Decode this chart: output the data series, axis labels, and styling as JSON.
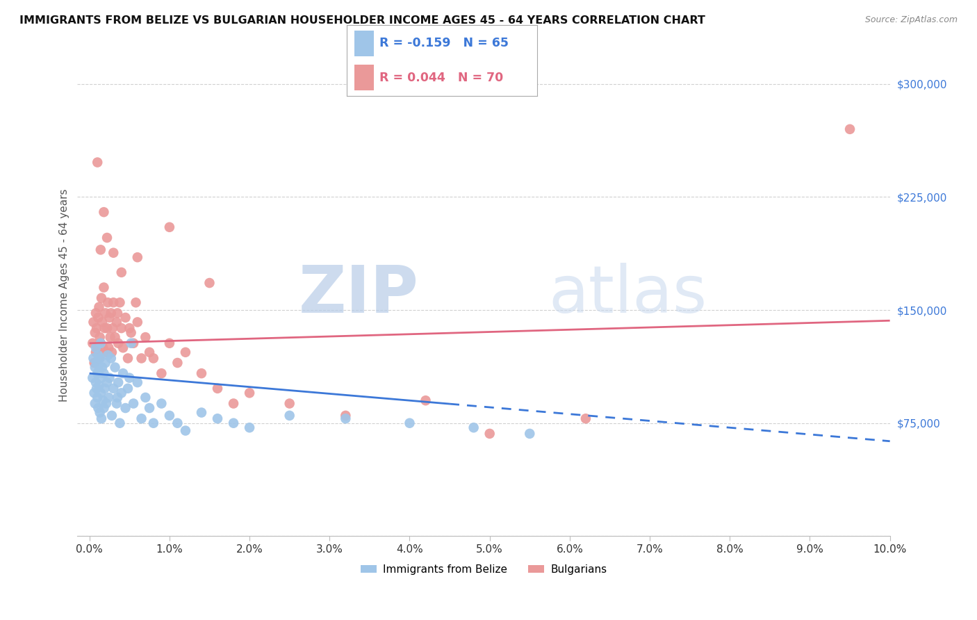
{
  "title": "IMMIGRANTS FROM BELIZE VS BULGARIAN HOUSEHOLDER INCOME AGES 45 - 64 YEARS CORRELATION CHART",
  "source": "Source: ZipAtlas.com",
  "ylabel": "Householder Income Ages 45 - 64 years",
  "xlim": [
    0.0,
    10.0
  ],
  "ylim": [
    0,
    320000
  ],
  "yticks": [
    0,
    75000,
    150000,
    225000,
    300000
  ],
  "ytick_labels": [
    "",
    "$75,000",
    "$150,000",
    "$225,000",
    "$300,000"
  ],
  "legend_blue_r": "R = -0.159",
  "legend_blue_n": "N = 65",
  "legend_pink_r": "R = 0.044",
  "legend_pink_n": "N = 70",
  "legend_label_blue": "Immigrants from Belize",
  "legend_label_pink": "Bulgarians",
  "blue_color": "#9fc5e8",
  "pink_color": "#ea9999",
  "blue_line_color": "#3c78d8",
  "pink_line_color": "#e06680",
  "watermark_zip": "ZIP",
  "watermark_atlas": "atlas",
  "belize_x": [
    0.04,
    0.05,
    0.06,
    0.07,
    0.07,
    0.08,
    0.08,
    0.09,
    0.09,
    0.1,
    0.1,
    0.11,
    0.11,
    0.12,
    0.12,
    0.13,
    0.13,
    0.14,
    0.14,
    0.15,
    0.15,
    0.16,
    0.17,
    0.18,
    0.18,
    0.19,
    0.2,
    0.21,
    0.22,
    0.23,
    0.24,
    0.25,
    0.27,
    0.28,
    0.3,
    0.32,
    0.34,
    0.36,
    0.38,
    0.4,
    0.42,
    0.45,
    0.48,
    0.52,
    0.55,
    0.6,
    0.65,
    0.7,
    0.75,
    0.8,
    0.9,
    1.0,
    1.1,
    1.2,
    1.4,
    1.6,
    2.0,
    2.5,
    3.2,
    4.0,
    4.8,
    5.5,
    1.8,
    0.35,
    0.5
  ],
  "belize_y": [
    105000,
    118000,
    95000,
    112000,
    88000,
    102000,
    125000,
    98000,
    115000,
    108000,
    92000,
    120000,
    85000,
    110000,
    100000,
    118000,
    82000,
    95000,
    128000,
    105000,
    78000,
    112000,
    90000,
    108000,
    85000,
    98000,
    115000,
    88000,
    102000,
    120000,
    92000,
    105000,
    118000,
    80000,
    98000,
    112000,
    88000,
    102000,
    75000,
    95000,
    108000,
    85000,
    98000,
    128000,
    88000,
    102000,
    78000,
    92000,
    85000,
    75000,
    88000,
    80000,
    75000,
    70000,
    82000,
    78000,
    72000,
    80000,
    78000,
    75000,
    72000,
    68000,
    75000,
    92000,
    105000
  ],
  "bulgarian_x": [
    0.04,
    0.05,
    0.06,
    0.07,
    0.08,
    0.08,
    0.09,
    0.1,
    0.11,
    0.12,
    0.12,
    0.13,
    0.14,
    0.15,
    0.16,
    0.17,
    0.18,
    0.19,
    0.2,
    0.21,
    0.22,
    0.23,
    0.24,
    0.25,
    0.26,
    0.27,
    0.28,
    0.29,
    0.3,
    0.32,
    0.34,
    0.36,
    0.38,
    0.4,
    0.42,
    0.45,
    0.48,
    0.52,
    0.55,
    0.6,
    0.65,
    0.7,
    0.75,
    0.8,
    0.9,
    1.0,
    1.1,
    1.2,
    1.4,
    1.6,
    1.8,
    2.0,
    2.5,
    3.2,
    4.2,
    5.0,
    6.2,
    0.35,
    0.5,
    0.58,
    0.22,
    0.18,
    0.14,
    0.1,
    0.3,
    0.4,
    0.6,
    1.0,
    1.5,
    9.5
  ],
  "bulgarian_y": [
    128000,
    142000,
    115000,
    135000,
    122000,
    148000,
    138000,
    125000,
    145000,
    118000,
    152000,
    132000,
    128000,
    158000,
    142000,
    125000,
    165000,
    138000,
    148000,
    122000,
    138000,
    155000,
    125000,
    145000,
    132000,
    148000,
    122000,
    138000,
    155000,
    132000,
    142000,
    128000,
    155000,
    138000,
    125000,
    145000,
    118000,
    135000,
    128000,
    142000,
    118000,
    132000,
    122000,
    118000,
    108000,
    128000,
    115000,
    122000,
    108000,
    98000,
    88000,
    95000,
    88000,
    80000,
    90000,
    68000,
    78000,
    148000,
    138000,
    155000,
    198000,
    215000,
    190000,
    248000,
    188000,
    175000,
    185000,
    205000,
    168000,
    270000
  ],
  "blue_line_x0": 0.0,
  "blue_line_x_solid_end": 4.5,
  "blue_line_x_dash_end": 10.0,
  "blue_line_y0": 108000,
  "blue_line_slope": -4500,
  "pink_line_x0": 0.0,
  "pink_line_x_end": 10.0,
  "pink_line_y0": 128000,
  "pink_line_slope": 1500
}
